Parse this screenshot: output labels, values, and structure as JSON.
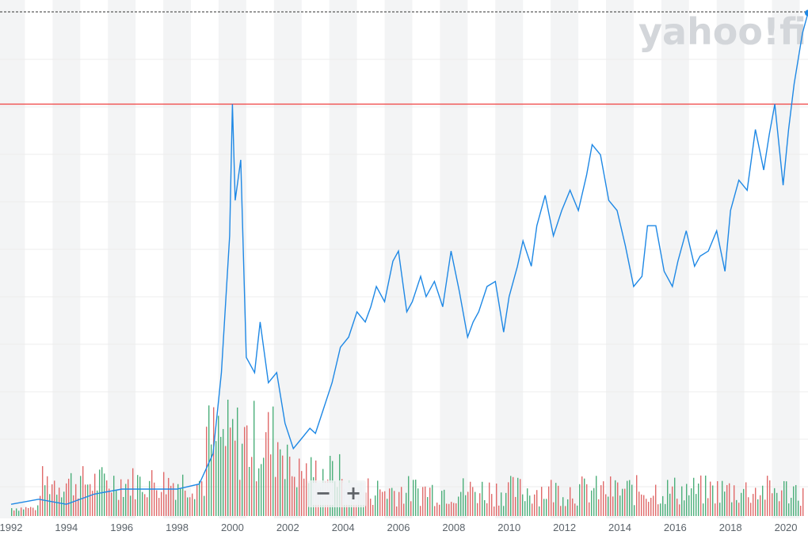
{
  "watermark": "yahoo!finance",
  "controls": {
    "zoom_out": "−",
    "zoom_in": "+"
  },
  "colors": {
    "line": "#1e88e5",
    "reference": "#f04a4a",
    "vol_up": "#4caf7a",
    "vol_down": "#e06a6a",
    "band": "#f3f4f5"
  },
  "chart_data": {
    "type": "line",
    "title": "",
    "xlabel": "",
    "ylabel": "",
    "x_ticks": [
      "1992",
      "1994",
      "1996",
      "1998",
      "2000",
      "2002",
      "2004",
      "2006",
      "2008",
      "2010",
      "2012",
      "2014",
      "2016",
      "2018",
      "2020"
    ],
    "xlim": [
      1991.6,
      2020.8
    ],
    "grid": true,
    "reference_line": 0.81,
    "last_price_marker": true,
    "series": [
      {
        "values_normalized": true,
        "x": [
          1992.0,
          1993.0,
          1994.0,
          1995.0,
          1996.0,
          1997.0,
          1998.0,
          1998.8,
          1999.3,
          1999.6,
          1999.9,
          2000.0,
          2000.1,
          2000.3,
          2000.5,
          2000.8,
          2001.0,
          2001.3,
          2001.6,
          2001.9,
          2002.2,
          2002.5,
          2002.8,
          2003.0,
          2003.3,
          2003.6,
          2003.9,
          2004.2,
          2004.5,
          2004.8,
          2005.0,
          2005.2,
          2005.5,
          2005.8,
          2006.0,
          2006.3,
          2006.5,
          2006.8,
          2007.0,
          2007.3,
          2007.6,
          2007.9,
          2008.2,
          2008.5,
          2008.7,
          2008.9,
          2009.2,
          2009.5,
          2009.8,
          2010.0,
          2010.3,
          2010.5,
          2010.8,
          2011.0,
          2011.3,
          2011.6,
          2011.9,
          2012.2,
          2012.5,
          2012.8,
          2013.0,
          2013.3,
          2013.6,
          2013.9,
          2014.2,
          2014.5,
          2014.8,
          2015.0,
          2015.3,
          2015.6,
          2015.9,
          2016.1,
          2016.4,
          2016.7,
          2016.9,
          2017.2,
          2017.5,
          2017.8,
          2018.0,
          2018.3,
          2018.6,
          2018.9,
          2019.2,
          2019.4,
          2019.6,
          2019.9,
          2020.1,
          2020.3,
          2020.6,
          2020.8
        ],
        "y": [
          0.02,
          0.03,
          0.02,
          0.04,
          0.05,
          0.05,
          0.05,
          0.06,
          0.12,
          0.28,
          0.55,
          0.81,
          0.62,
          0.7,
          0.31,
          0.28,
          0.38,
          0.26,
          0.28,
          0.18,
          0.13,
          0.15,
          0.17,
          0.16,
          0.21,
          0.26,
          0.33,
          0.35,
          0.4,
          0.38,
          0.41,
          0.45,
          0.42,
          0.5,
          0.52,
          0.4,
          0.42,
          0.47,
          0.43,
          0.46,
          0.41,
          0.52,
          0.44,
          0.35,
          0.38,
          0.4,
          0.45,
          0.46,
          0.36,
          0.43,
          0.49,
          0.54,
          0.49,
          0.57,
          0.63,
          0.55,
          0.6,
          0.64,
          0.6,
          0.67,
          0.73,
          0.71,
          0.62,
          0.6,
          0.53,
          0.45,
          0.47,
          0.57,
          0.57,
          0.48,
          0.45,
          0.5,
          0.56,
          0.49,
          0.51,
          0.52,
          0.56,
          0.48,
          0.6,
          0.66,
          0.64,
          0.76,
          0.68,
          0.75,
          0.81,
          0.65,
          0.76,
          0.85,
          0.95,
          0.99
        ]
      }
    ],
    "volume_normalized": true
  }
}
